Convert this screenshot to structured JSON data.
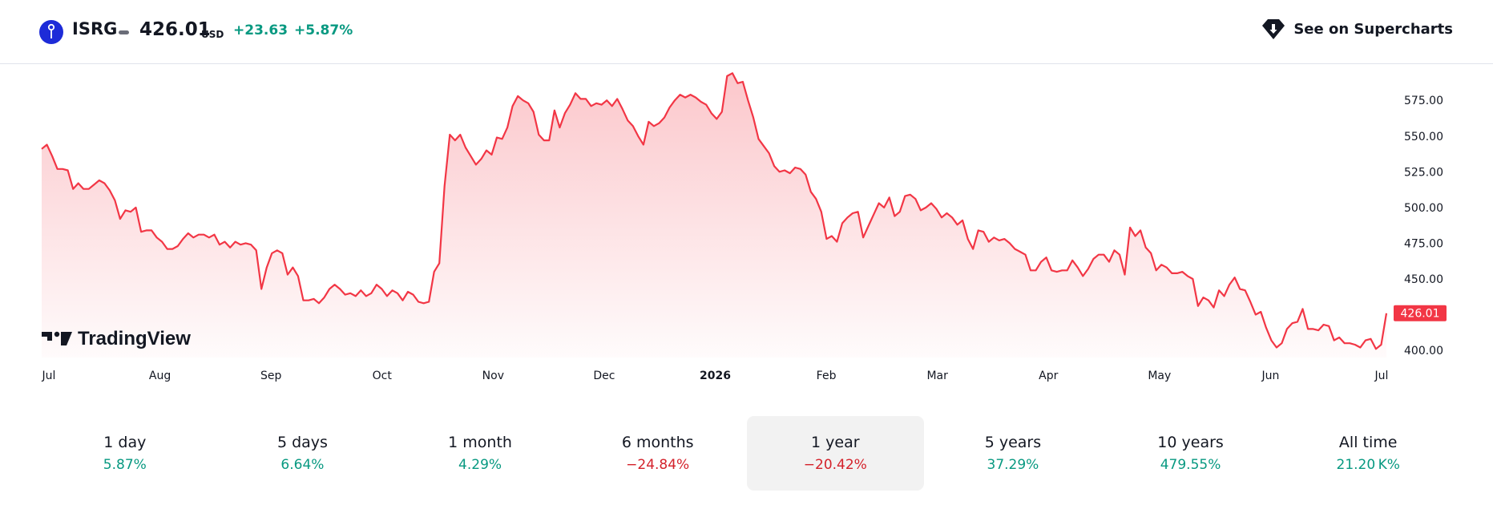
{
  "header": {
    "ticker": "ISRG",
    "price": "426.01",
    "currency": "USD",
    "change": "+23.63",
    "change_percent": "+5.87%",
    "supercharts_label": "See on Supercharts",
    "logo_icon": "isrg-logo-icon",
    "supercharts_icon": "tradingview-diamond-icon"
  },
  "colors": {
    "line": "#f23645",
    "positive": "#089981",
    "negative": "#d4222b",
    "logo_blue": "#1d2bd8",
    "active_tab_bg": "#f2f2f2"
  },
  "watermark": "TradingView",
  "price_badge": "426.01",
  "chart_data": {
    "type": "area",
    "ticker": "ISRG",
    "x_ticks": [
      "Jul",
      "Aug",
      "Sep",
      "Oct",
      "Nov",
      "Dec",
      "2026",
      "Feb",
      "Mar",
      "Apr",
      "May",
      "Jun",
      "Jul"
    ],
    "y_ticks": [
      "575.00",
      "550.00",
      "525.00",
      "500.00",
      "475.00",
      "450.00",
      "400.00"
    ],
    "ylim": [
      395,
      597
    ],
    "last_value": 426.01,
    "grid": false,
    "series": [
      {
        "values": [
          541,
          544,
          536,
          527,
          527,
          526,
          513,
          517,
          513,
          513,
          516,
          519,
          517,
          512,
          505,
          492,
          498,
          497,
          500,
          483,
          484,
          484,
          479,
          476,
          471,
          471,
          473,
          478,
          482,
          479,
          481,
          481,
          479,
          481,
          474,
          476,
          472,
          476,
          474,
          475,
          474,
          470,
          443,
          458,
          468,
          470,
          468,
          453,
          458,
          452,
          435,
          435,
          436,
          433,
          437,
          443,
          446,
          443,
          439,
          440,
          438,
          442,
          438,
          440,
          446,
          443,
          438,
          442,
          440,
          435,
          441,
          439,
          434,
          433,
          434,
          455,
          461,
          515,
          551,
          547,
          551,
          542,
          536,
          530,
          534,
          540,
          537,
          549,
          548,
          556,
          571,
          578,
          575,
          573,
          567,
          551,
          547,
          547,
          568,
          556,
          566,
          572,
          580,
          576,
          576,
          571,
          573,
          572,
          575,
          571,
          576,
          569,
          561,
          557,
          550,
          544,
          560,
          557,
          559,
          563,
          570,
          575,
          579,
          577,
          579,
          577,
          574,
          572,
          566,
          562,
          567,
          592,
          594,
          587,
          588,
          575,
          563,
          548,
          543,
          538,
          529,
          525,
          526,
          524,
          528,
          527,
          523,
          511,
          506,
          497,
          478,
          480,
          476,
          489,
          493,
          496,
          497,
          479,
          487,
          495,
          503,
          500,
          507,
          494,
          497,
          508,
          509,
          506,
          498,
          500,
          503,
          499,
          493,
          496,
          493,
          488,
          491,
          478,
          471,
          484,
          483,
          476,
          479,
          477,
          478,
          475,
          471,
          469,
          467,
          456,
          456,
          462,
          465,
          456,
          455,
          456,
          456,
          463,
          458,
          452,
          457,
          464,
          467,
          467,
          462,
          470,
          467,
          453,
          486,
          480,
          484,
          472,
          468,
          456,
          460,
          458,
          454,
          454,
          455,
          452,
          450,
          431,
          437,
          435,
          430,
          442,
          438,
          446,
          451,
          443,
          442,
          434,
          425,
          427,
          416,
          407,
          402,
          405,
          415,
          419,
          420,
          429,
          415,
          415,
          414,
          418,
          417,
          407,
          409,
          405,
          405,
          404,
          402,
          407,
          408,
          401,
          404,
          426
        ]
      }
    ]
  },
  "periods": [
    {
      "label": "1 day",
      "value": "5.87%",
      "trend": "positive"
    },
    {
      "label": "5 days",
      "value": "6.64%",
      "trend": "positive"
    },
    {
      "label": "1 month",
      "value": "4.29%",
      "trend": "positive"
    },
    {
      "label": "6 months",
      "value": "−24.84%",
      "trend": "negative"
    },
    {
      "label": "1 year",
      "value": "−20.42%",
      "trend": "negative"
    },
    {
      "label": "5 years",
      "value": "37.29%",
      "trend": "positive"
    },
    {
      "label": "10 years",
      "value": "479.55%",
      "trend": "positive"
    },
    {
      "label": "All time",
      "value": "21.20 K%",
      "trend": "positive"
    }
  ],
  "active_period": "1 year"
}
